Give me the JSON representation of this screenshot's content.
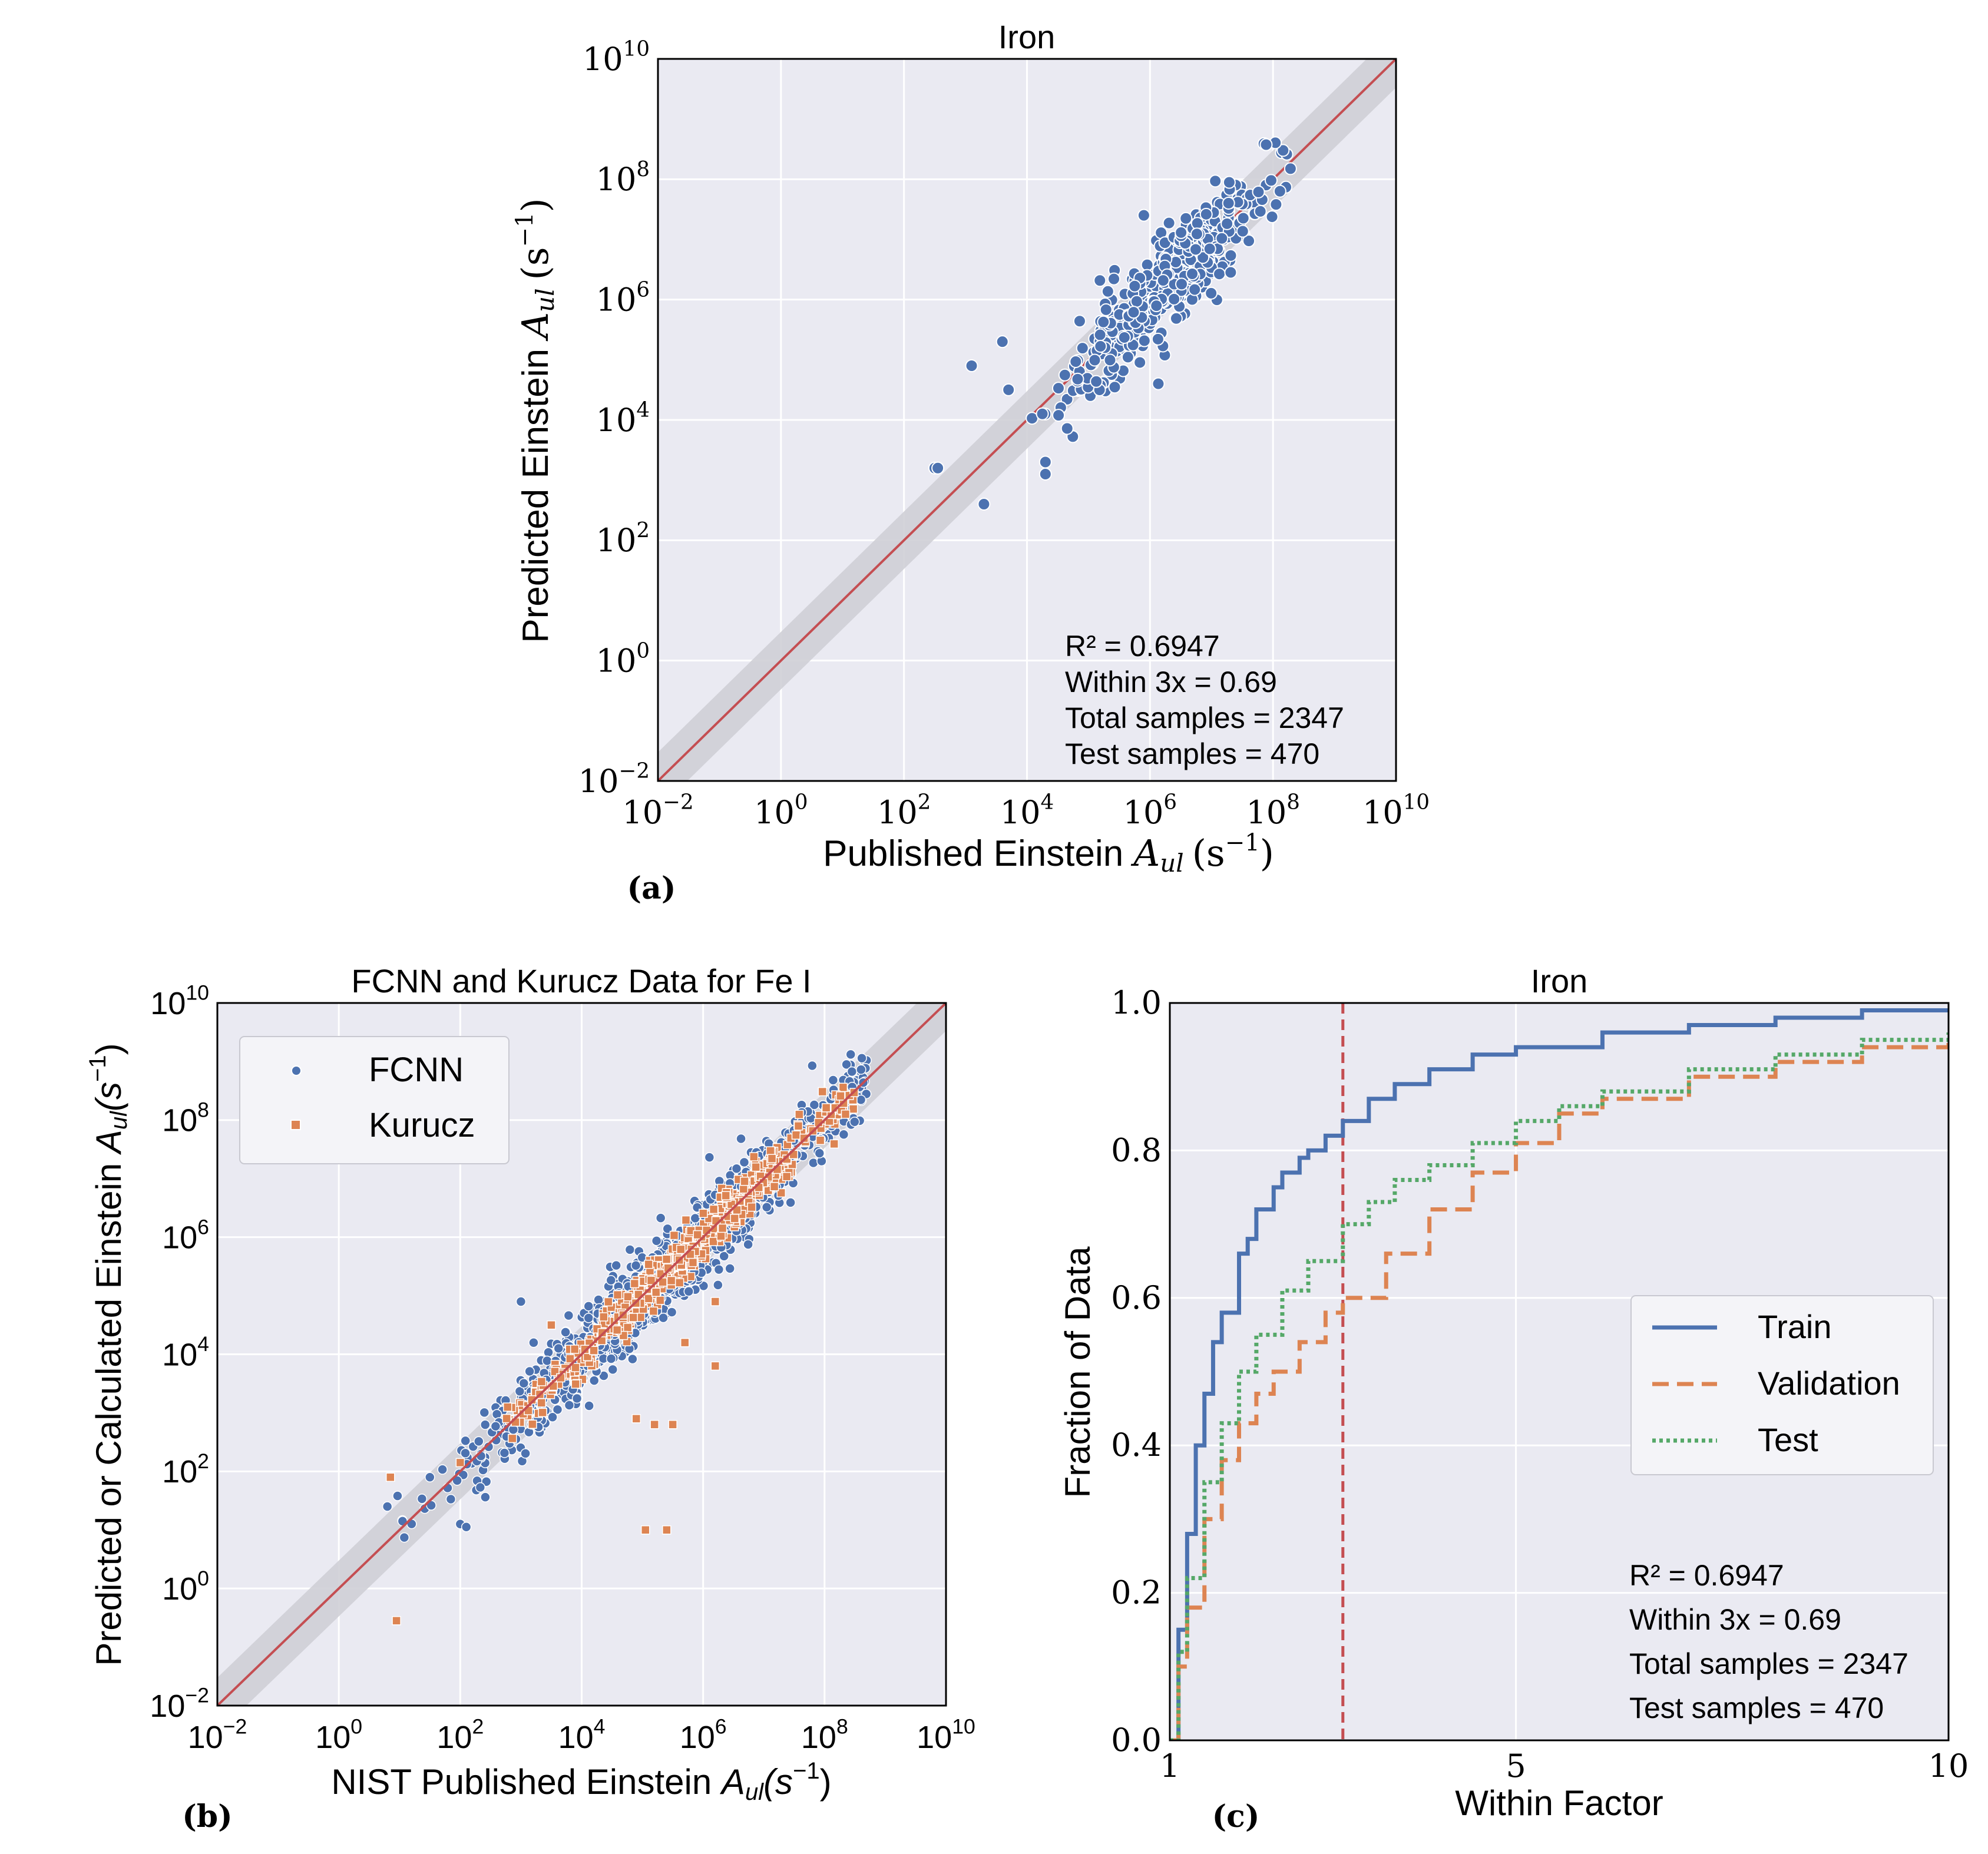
{
  "chart_data": [
    {
      "panel": "a",
      "type": "scatter",
      "title": "Iron",
      "xlabel": "Published Einstein A_ul (s^-1)",
      "ylabel": "Predicted Einstein A_ul (s^-1)",
      "xlabel_parts": {
        "prefix": "Published Einstein ",
        "A": "A",
        "sub": "ul",
        "unit": "(s",
        "exp": "−1",
        "close": ")"
      },
      "ylabel_parts": {
        "prefix": "Predicted Einstein ",
        "A": "A",
        "sub": "ul",
        "unit": "(s",
        "exp": "−1",
        "close": ")"
      },
      "xscale": "log",
      "yscale": "log",
      "xlim": [
        0.01,
        10000000000
      ],
      "ylim": [
        0.01,
        10000000000
      ],
      "ticks_exp": [
        "−2",
        "0",
        "2",
        "4",
        "6",
        "8",
        "10"
      ],
      "tick_base": "10",
      "reference_line": "y = x",
      "band": "within factor 3",
      "series": [
        {
          "name": "Test",
          "color": "#4c72b0",
          "n_points": 470
        }
      ],
      "annotation": [
        "R² = 0.6947",
        "Within 3x = 0.69",
        "Total samples = 2347",
        "Test samples = 470"
      ],
      "caption": "(a)"
    },
    {
      "panel": "b",
      "type": "scatter",
      "title": "FCNN and Kurucz Data for Fe I",
      "xlabel": "NIST Published Einstein A_ul(s^-1)",
      "ylabel": "Predicted or Calculated Einstein A_ul(s^-1)",
      "xlabel_parts": {
        "prefix": "NIST Published Einstein ",
        "A": "A",
        "sub": "ul",
        "unit": "(s",
        "exp": "−1",
        "close": ")"
      },
      "ylabel_parts": {
        "prefix": "Predicted or Calculated Einstein ",
        "A": "A",
        "sub": "ul",
        "unit": "(s",
        "exp": "−1",
        "close": ")"
      },
      "xscale": "log",
      "yscale": "log",
      "xlim": [
        0.01,
        10000000000
      ],
      "ylim": [
        0.01,
        10000000000
      ],
      "ticks_exp": [
        "−2",
        "0",
        "2",
        "4",
        "6",
        "8",
        "10"
      ],
      "tick_base": "10",
      "series": [
        {
          "name": "FCNN",
          "color": "#4c72b0",
          "marker": "circle"
        },
        {
          "name": "Kurucz",
          "color": "#dd8452",
          "marker": "square"
        }
      ],
      "legend_position": "upper-left",
      "caption": "(b)"
    },
    {
      "panel": "c",
      "type": "line",
      "title": "Iron",
      "xlabel": "Within Factor",
      "ylabel": "Fraction of Data",
      "xlim": [
        1,
        10
      ],
      "ylim": [
        0.0,
        1.0
      ],
      "xticks": [
        "1",
        "5",
        "10"
      ],
      "yticks": [
        "0.0",
        "0.2",
        "0.4",
        "0.6",
        "0.8",
        "1.0"
      ],
      "vline_x": 3,
      "series": [
        {
          "name": "Train",
          "color": "#4c72b0",
          "style": "solid",
          "x": [
            1,
            1.1,
            1.2,
            1.3,
            1.4,
            1.5,
            1.6,
            1.8,
            1.9,
            2.0,
            2.2,
            2.3,
            2.5,
            2.6,
            2.8,
            3.0,
            3.3,
            3.6,
            4.0,
            4.5,
            5.0,
            6.0,
            7.0,
            8.0,
            9.0,
            10.0
          ],
          "y": [
            0.0,
            0.15,
            0.28,
            0.4,
            0.47,
            0.54,
            0.58,
            0.66,
            0.68,
            0.72,
            0.75,
            0.77,
            0.79,
            0.8,
            0.82,
            0.84,
            0.87,
            0.89,
            0.91,
            0.93,
            0.94,
            0.96,
            0.97,
            0.98,
            0.99,
            0.99
          ]
        },
        {
          "name": "Validation",
          "color": "#dd8452",
          "style": "dashed",
          "x": [
            1,
            1.1,
            1.2,
            1.4,
            1.6,
            1.8,
            2.0,
            2.2,
            2.5,
            2.8,
            3.0,
            3.5,
            4.0,
            4.5,
            5.0,
            5.5,
            6.0,
            7.0,
            8.0,
            9.0,
            10.0
          ],
          "y": [
            0.0,
            0.1,
            0.18,
            0.3,
            0.38,
            0.43,
            0.47,
            0.5,
            0.54,
            0.58,
            0.6,
            0.66,
            0.72,
            0.77,
            0.81,
            0.85,
            0.87,
            0.9,
            0.92,
            0.94,
            0.95
          ]
        },
        {
          "name": "Test",
          "color": "#55a868",
          "style": "dotted",
          "x": [
            1,
            1.1,
            1.2,
            1.4,
            1.6,
            1.8,
            2.0,
            2.3,
            2.6,
            3.0,
            3.3,
            3.6,
            4.0,
            4.5,
            5.0,
            5.5,
            6.0,
            7.0,
            8.0,
            9.0,
            10.0
          ],
          "y": [
            0.0,
            0.12,
            0.22,
            0.35,
            0.43,
            0.5,
            0.55,
            0.61,
            0.65,
            0.7,
            0.73,
            0.76,
            0.78,
            0.81,
            0.84,
            0.86,
            0.88,
            0.91,
            0.93,
            0.95,
            0.96
          ]
        }
      ],
      "annotation": [
        "R² = 0.6947",
        "Within 3x = 0.69",
        "Total samples = 2347",
        "Test samples = 470"
      ],
      "legend_position": "center-right",
      "caption": "(c)"
    }
  ]
}
